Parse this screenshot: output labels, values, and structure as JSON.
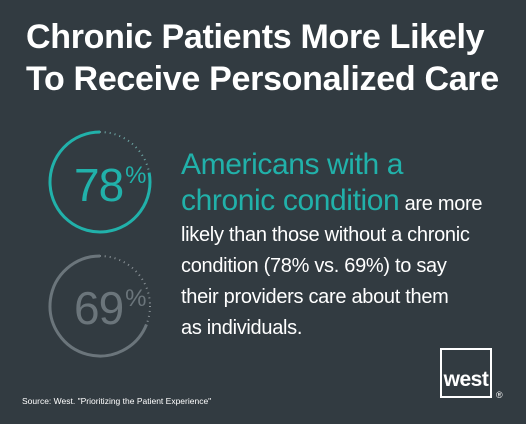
{
  "title": {
    "line1": "Chronic Patients More Likely",
    "line2": "To Receive Personalized Care"
  },
  "chart_data": {
    "type": "ring",
    "unit": "%",
    "series": [
      {
        "value": 78,
        "label": "78",
        "color": "#21b1aa",
        "track_color": "#6fa9a7"
      },
      {
        "value": 69,
        "label": "69",
        "color": "#6b757b",
        "track_color": "#8b9398"
      }
    ]
  },
  "description": {
    "highlight_line1": "Americans with a",
    "highlight_line2": "chronic condition",
    "text_line1_rest": "are more",
    "text_line2": "likely than those without a chronic",
    "text_line3": "condition (78% vs. 69%) to say",
    "text_line4": "their providers care about them",
    "text_line5": "as individuals."
  },
  "source": "Source:  West. \"Prioritizing the Patient Experience\"",
  "logo": {
    "text": "west",
    "registered": "®"
  }
}
